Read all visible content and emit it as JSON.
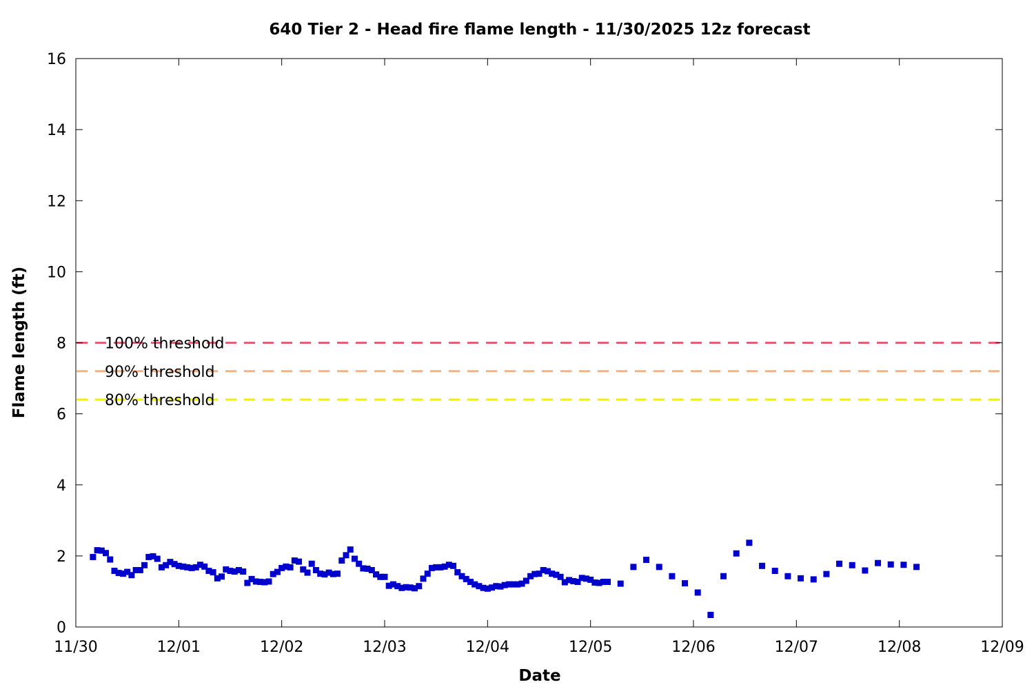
{
  "chart_data": {
    "type": "scatter",
    "title": "640 Tier 2 - Head fire flame length - 11/30/2025 12z forecast",
    "xlabel": "Date",
    "ylabel": "Flame length (ft)",
    "x_is_datetime": true,
    "x_ticks": [
      "11/30",
      "12/01",
      "12/02",
      "12/03",
      "12/04",
      "12/05",
      "12/06",
      "12/07",
      "12/08",
      "12/09"
    ],
    "xlim": [
      "2025-11-30T00:00",
      "2025-12-09T00:00"
    ],
    "ylim": [
      0,
      16
    ],
    "y_ticks": [
      0,
      2,
      4,
      6,
      8,
      10,
      12,
      14,
      16
    ],
    "grid": false,
    "marker_color": "#0000cc",
    "thresholds": [
      {
        "label": "100% threshold",
        "value": 8.0,
        "color": "#e0607a"
      },
      {
        "label": "90% threshold",
        "value": 7.2,
        "color": "#f4b183"
      },
      {
        "label": "80% threshold",
        "value": 6.4,
        "color": "#f0f000"
      }
    ],
    "series": [
      {
        "x": [
          "2025-11-30T04:00",
          "2025-11-30T05:00",
          "2025-11-30T06:00",
          "2025-11-30T07:00",
          "2025-11-30T08:00",
          "2025-11-30T09:00",
          "2025-11-30T10:00",
          "2025-11-30T11:00",
          "2025-11-30T12:00",
          "2025-11-30T13:00",
          "2025-11-30T14:00",
          "2025-11-30T15:00",
          "2025-11-30T16:00",
          "2025-11-30T17:00",
          "2025-11-30T18:00",
          "2025-11-30T19:00",
          "2025-11-30T20:00",
          "2025-11-30T21:00",
          "2025-11-30T22:00",
          "2025-11-30T23:00",
          "2025-12-01T00:00",
          "2025-12-01T01:00",
          "2025-12-01T02:00",
          "2025-12-01T03:00",
          "2025-12-01T04:00",
          "2025-12-01T05:00",
          "2025-12-01T06:00",
          "2025-12-01T07:00",
          "2025-12-01T08:00",
          "2025-12-01T09:00",
          "2025-12-01T10:00",
          "2025-12-01T11:00",
          "2025-12-01T12:00",
          "2025-12-01T13:00",
          "2025-12-01T14:00",
          "2025-12-01T15:00",
          "2025-12-01T16:00",
          "2025-12-01T17:00",
          "2025-12-01T18:00",
          "2025-12-01T19:00",
          "2025-12-01T20:00",
          "2025-12-01T21:00",
          "2025-12-01T22:00",
          "2025-12-01T23:00",
          "2025-12-02T00:00",
          "2025-12-02T01:00",
          "2025-12-02T02:00",
          "2025-12-02T03:00",
          "2025-12-02T04:00",
          "2025-12-02T05:00",
          "2025-12-02T06:00",
          "2025-12-02T07:00",
          "2025-12-02T08:00",
          "2025-12-02T09:00",
          "2025-12-02T10:00",
          "2025-12-02T11:00",
          "2025-12-02T12:00",
          "2025-12-02T13:00",
          "2025-12-02T14:00",
          "2025-12-02T15:00",
          "2025-12-02T16:00",
          "2025-12-02T17:00",
          "2025-12-02T18:00",
          "2025-12-02T19:00",
          "2025-12-02T20:00",
          "2025-12-02T21:00",
          "2025-12-02T22:00",
          "2025-12-02T23:00",
          "2025-12-03T00:00",
          "2025-12-03T01:00",
          "2025-12-03T02:00",
          "2025-12-03T03:00",
          "2025-12-03T04:00",
          "2025-12-03T05:00",
          "2025-12-03T06:00",
          "2025-12-03T07:00",
          "2025-12-03T08:00",
          "2025-12-03T09:00",
          "2025-12-03T10:00",
          "2025-12-03T11:00",
          "2025-12-03T12:00",
          "2025-12-03T13:00",
          "2025-12-03T14:00",
          "2025-12-03T15:00",
          "2025-12-03T16:00",
          "2025-12-03T17:00",
          "2025-12-03T18:00",
          "2025-12-03T19:00",
          "2025-12-03T20:00",
          "2025-12-03T21:00",
          "2025-12-03T22:00",
          "2025-12-03T23:00",
          "2025-12-04T00:00",
          "2025-12-04T01:00",
          "2025-12-04T02:00",
          "2025-12-04T03:00",
          "2025-12-04T04:00",
          "2025-12-04T05:00",
          "2025-12-04T06:00",
          "2025-12-04T07:00",
          "2025-12-04T08:00",
          "2025-12-04T09:00",
          "2025-12-04T10:00",
          "2025-12-04T11:00",
          "2025-12-04T12:00",
          "2025-12-04T13:00",
          "2025-12-04T14:00",
          "2025-12-04T15:00",
          "2025-12-04T16:00",
          "2025-12-04T17:00",
          "2025-12-04T18:00",
          "2025-12-04T19:00",
          "2025-12-04T20:00",
          "2025-12-04T21:00",
          "2025-12-04T22:00",
          "2025-12-04T23:00",
          "2025-12-05T00:00",
          "2025-12-05T01:00",
          "2025-12-05T02:00",
          "2025-12-05T03:00",
          "2025-12-05T04:00",
          "2025-12-05T07:00",
          "2025-12-05T10:00",
          "2025-12-05T13:00",
          "2025-12-05T16:00",
          "2025-12-05T19:00",
          "2025-12-05T22:00",
          "2025-12-06T01:00",
          "2025-12-06T04:00",
          "2025-12-06T07:00",
          "2025-12-06T10:00",
          "2025-12-06T13:00",
          "2025-12-06T16:00",
          "2025-12-06T19:00",
          "2025-12-06T22:00",
          "2025-12-07T01:00",
          "2025-12-07T04:00",
          "2025-12-07T07:00",
          "2025-12-07T10:00",
          "2025-12-07T13:00",
          "2025-12-07T16:00",
          "2025-12-07T19:00",
          "2025-12-07T22:00",
          "2025-12-08T01:00",
          "2025-12-08T04:00"
        ],
        "y": [
          1.97,
          2.16,
          2.15,
          2.08,
          1.9,
          1.58,
          1.52,
          1.5,
          1.55,
          1.46,
          1.6,
          1.6,
          1.74,
          1.97,
          1.99,
          1.92,
          1.68,
          1.74,
          1.83,
          1.77,
          1.72,
          1.7,
          1.68,
          1.66,
          1.68,
          1.75,
          1.7,
          1.58,
          1.54,
          1.37,
          1.42,
          1.62,
          1.58,
          1.56,
          1.6,
          1.56,
          1.24,
          1.35,
          1.28,
          1.27,
          1.26,
          1.28,
          1.49,
          1.55,
          1.66,
          1.7,
          1.68,
          1.87,
          1.84,
          1.62,
          1.53,
          1.78,
          1.6,
          1.5,
          1.48,
          1.53,
          1.49,
          1.5,
          1.87,
          2.02,
          2.18,
          1.92,
          1.78,
          1.65,
          1.64,
          1.6,
          1.48,
          1.41,
          1.41,
          1.16,
          1.2,
          1.15,
          1.1,
          1.12,
          1.11,
          1.09,
          1.15,
          1.36,
          1.5,
          1.66,
          1.68,
          1.68,
          1.7,
          1.75,
          1.72,
          1.54,
          1.43,
          1.35,
          1.27,
          1.2,
          1.15,
          1.1,
          1.08,
          1.11,
          1.15,
          1.14,
          1.18,
          1.2,
          1.2,
          1.2,
          1.22,
          1.3,
          1.43,
          1.49,
          1.5,
          1.6,
          1.57,
          1.5,
          1.47,
          1.41,
          1.26,
          1.32,
          1.29,
          1.27,
          1.38,
          1.36,
          1.33,
          1.25,
          1.24,
          1.27,
          1.27,
          1.22,
          1.69,
          1.89,
          1.69,
          1.43,
          1.23,
          0.97,
          0.34,
          1.43,
          2.07,
          2.37,
          1.72,
          1.58,
          1.43,
          1.37,
          1.34,
          1.49,
          1.78,
          1.74,
          1.59,
          1.8,
          1.76,
          1.75,
          1.69
        ]
      }
    ]
  }
}
